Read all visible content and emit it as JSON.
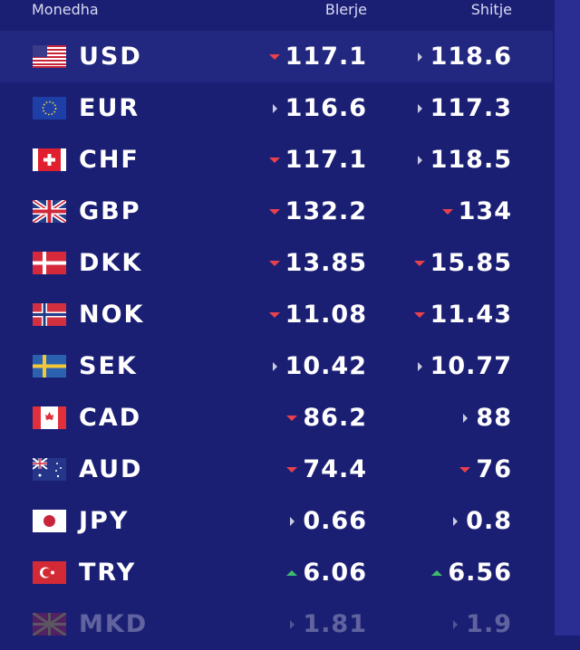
{
  "header": {
    "currency": "Monedha",
    "buy": "Blerje",
    "sell": "Shitje"
  },
  "rows": [
    {
      "code": "USD",
      "buy": "117.1",
      "buy_trend": "down",
      "sell": "118.6",
      "sell_trend": "flat"
    },
    {
      "code": "EUR",
      "buy": "116.6",
      "buy_trend": "flat",
      "sell": "117.3",
      "sell_trend": "flat"
    },
    {
      "code": "CHF",
      "buy": "117.1",
      "buy_trend": "down",
      "sell": "118.5",
      "sell_trend": "flat"
    },
    {
      "code": "GBP",
      "buy": "132.2",
      "buy_trend": "down",
      "sell": "134",
      "sell_trend": "down"
    },
    {
      "code": "DKK",
      "buy": "13.85",
      "buy_trend": "down",
      "sell": "15.85",
      "sell_trend": "down"
    },
    {
      "code": "NOK",
      "buy": "11.08",
      "buy_trend": "down",
      "sell": "11.43",
      "sell_trend": "down"
    },
    {
      "code": "SEK",
      "buy": "10.42",
      "buy_trend": "flat",
      "sell": "10.77",
      "sell_trend": "flat"
    },
    {
      "code": "CAD",
      "buy": "86.2",
      "buy_trend": "down",
      "sell": "88",
      "sell_trend": "flat"
    },
    {
      "code": "AUD",
      "buy": "74.4",
      "buy_trend": "down",
      "sell": "76",
      "sell_trend": "down"
    },
    {
      "code": "JPY",
      "buy": "0.66",
      "buy_trend": "flat",
      "sell": "0.8",
      "sell_trend": "flat"
    },
    {
      "code": "TRY",
      "buy": "6.06",
      "buy_trend": "up",
      "sell": "6.56",
      "sell_trend": "up"
    },
    {
      "code": "MKD",
      "buy": "1.81",
      "buy_trend": "flat",
      "sell": "1.9",
      "sell_trend": "flat"
    }
  ]
}
